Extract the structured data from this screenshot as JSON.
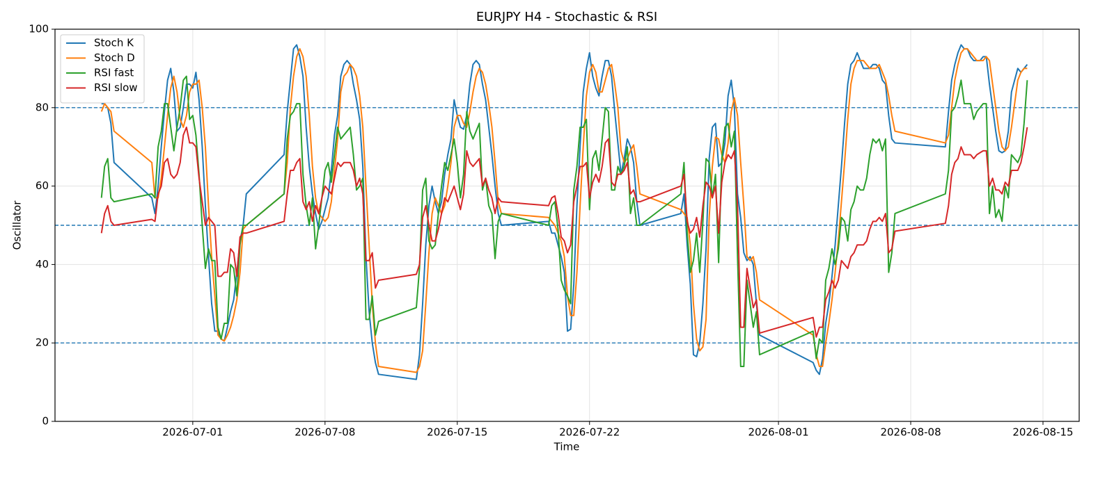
{
  "chart_data": {
    "type": "line",
    "title": "EURJPY H4 - Stochastic & RSI",
    "x_label": "Time",
    "y_label": "Oscillator",
    "xlim": [
      "2026-06-23T17:00",
      "2026-08-16T22:00"
    ],
    "xticks": [
      "2026-07-01",
      "2026-07-08",
      "2026-07-15",
      "2026-07-22",
      "2026-08-01",
      "2026-08-08",
      "2026-08-15"
    ],
    "ylim": [
      0,
      100
    ],
    "yticks": [
      0,
      20,
      40,
      60,
      80,
      100
    ],
    "grid": true,
    "legend": "upper left",
    "reference_lines": [
      80,
      50,
      20
    ],
    "reference_color": "#1f77b4",
    "x": [
      "2026-06-26T04:00",
      "2026-06-26T08:00",
      "2026-06-26T12:00",
      "2026-06-26T16:00",
      "2026-06-26T20:00",
      "2026-06-28T20:00",
      "2026-06-29T00:00",
      "2026-06-29T04:00",
      "2026-06-29T08:00",
      "2026-06-29T12:00",
      "2026-06-29T16:00",
      "2026-06-29T20:00",
      "2026-06-30T00:00",
      "2026-06-30T04:00",
      "2026-06-30T08:00",
      "2026-06-30T12:00",
      "2026-06-30T16:00",
      "2026-06-30T20:00",
      "2026-07-01T00:00",
      "2026-07-01T04:00",
      "2026-07-01T08:00",
      "2026-07-01T12:00",
      "2026-07-01T16:00",
      "2026-07-01T20:00",
      "2026-07-02T00:00",
      "2026-07-02T04:00",
      "2026-07-02T08:00",
      "2026-07-02T12:00",
      "2026-07-02T16:00",
      "2026-07-02T20:00",
      "2026-07-03T00:00",
      "2026-07-03T04:00",
      "2026-07-03T08:00",
      "2026-07-03T12:00",
      "2026-07-03T16:00",
      "2026-07-03T20:00",
      "2026-07-05T20:00",
      "2026-07-06T00:00",
      "2026-07-06T04:00",
      "2026-07-06T08:00",
      "2026-07-06T12:00",
      "2026-07-06T16:00",
      "2026-07-06T20:00",
      "2026-07-07T00:00",
      "2026-07-07T04:00",
      "2026-07-07T08:00",
      "2026-07-07T12:00",
      "2026-07-07T16:00",
      "2026-07-07T20:00",
      "2026-07-08T00:00",
      "2026-07-08T04:00",
      "2026-07-08T08:00",
      "2026-07-08T12:00",
      "2026-07-08T16:00",
      "2026-07-08T20:00",
      "2026-07-09T00:00",
      "2026-07-09T04:00",
      "2026-07-09T08:00",
      "2026-07-09T12:00",
      "2026-07-09T16:00",
      "2026-07-09T20:00",
      "2026-07-10T00:00",
      "2026-07-10T04:00",
      "2026-07-10T08:00",
      "2026-07-10T12:00",
      "2026-07-10T16:00",
      "2026-07-10T20:00",
      "2026-07-12T20:00",
      "2026-07-13T00:00",
      "2026-07-13T04:00",
      "2026-07-13T08:00",
      "2026-07-13T12:00",
      "2026-07-13T16:00",
      "2026-07-13T20:00",
      "2026-07-14T00:00",
      "2026-07-14T04:00",
      "2026-07-14T08:00",
      "2026-07-14T12:00",
      "2026-07-14T16:00",
      "2026-07-14T20:00",
      "2026-07-15T00:00",
      "2026-07-15T04:00",
      "2026-07-15T08:00",
      "2026-07-15T12:00",
      "2026-07-15T16:00",
      "2026-07-15T20:00",
      "2026-07-16T00:00",
      "2026-07-16T04:00",
      "2026-07-16T08:00",
      "2026-07-16T12:00",
      "2026-07-16T16:00",
      "2026-07-16T20:00",
      "2026-07-17T00:00",
      "2026-07-17T04:00",
      "2026-07-17T08:00",
      "2026-07-19T20:00",
      "2026-07-20T00:00",
      "2026-07-20T04:00",
      "2026-07-20T08:00",
      "2026-07-20T12:00",
      "2026-07-20T16:00",
      "2026-07-20T20:00",
      "2026-07-21T00:00",
      "2026-07-21T04:00",
      "2026-07-21T08:00",
      "2026-07-21T12:00",
      "2026-07-21T16:00",
      "2026-07-21T20:00",
      "2026-07-22T00:00",
      "2026-07-22T04:00",
      "2026-07-22T08:00",
      "2026-07-22T12:00",
      "2026-07-22T16:00",
      "2026-07-22T20:00",
      "2026-07-23T00:00",
      "2026-07-23T04:00",
      "2026-07-23T08:00",
      "2026-07-23T12:00",
      "2026-07-23T16:00",
      "2026-07-23T20:00",
      "2026-07-24T00:00",
      "2026-07-24T04:00",
      "2026-07-24T08:00",
      "2026-07-24T12:00",
      "2026-07-24T16:00",
      "2026-07-26T20:00",
      "2026-07-27T00:00",
      "2026-07-27T04:00",
      "2026-07-27T08:00",
      "2026-07-27T12:00",
      "2026-07-27T16:00",
      "2026-07-27T20:00",
      "2026-07-28T00:00",
      "2026-07-28T04:00",
      "2026-07-28T08:00",
      "2026-07-28T12:00",
      "2026-07-28T16:00",
      "2026-07-28T20:00",
      "2026-07-29T00:00",
      "2026-07-29T04:00",
      "2026-07-29T08:00",
      "2026-07-29T12:00",
      "2026-07-29T16:00",
      "2026-07-29T20:00",
      "2026-07-30T00:00",
      "2026-07-30T04:00",
      "2026-07-30T08:00",
      "2026-07-30T12:00",
      "2026-07-30T16:00",
      "2026-07-30T20:00",
      "2026-07-31T00:00",
      "2026-08-02T20:00",
      "2026-08-03T00:00",
      "2026-08-03T04:00",
      "2026-08-03T08:00",
      "2026-08-03T12:00",
      "2026-08-03T16:00",
      "2026-08-03T20:00",
      "2026-08-04T00:00",
      "2026-08-04T04:00",
      "2026-08-04T08:00",
      "2026-08-04T12:00",
      "2026-08-04T16:00",
      "2026-08-04T20:00",
      "2026-08-05T00:00",
      "2026-08-05T04:00",
      "2026-08-05T08:00",
      "2026-08-05T12:00",
      "2026-08-05T16:00",
      "2026-08-05T20:00",
      "2026-08-06T00:00",
      "2026-08-06T04:00",
      "2026-08-06T08:00",
      "2026-08-06T12:00",
      "2026-08-06T16:00",
      "2026-08-06T20:00",
      "2026-08-07T00:00",
      "2026-08-07T04:00",
      "2026-08-09T20:00",
      "2026-08-10T00:00",
      "2026-08-10T04:00",
      "2026-08-10T08:00",
      "2026-08-10T12:00",
      "2026-08-10T16:00",
      "2026-08-10T20:00",
      "2026-08-11T00:00",
      "2026-08-11T04:00",
      "2026-08-11T08:00",
      "2026-08-11T12:00",
      "2026-08-11T16:00",
      "2026-08-11T20:00",
      "2026-08-12T00:00",
      "2026-08-12T04:00",
      "2026-08-12T08:00",
      "2026-08-12T12:00",
      "2026-08-12T16:00",
      "2026-08-12T20:00",
      "2026-08-13T00:00",
      "2026-08-13T04:00",
      "2026-08-13T08:00",
      "2026-08-13T12:00",
      "2026-08-13T16:00",
      "2026-08-13T20:00",
      "2026-08-14T00:00",
      "2026-08-14T04:00"
    ],
    "series": [
      {
        "name": "Stoch K",
        "color": "#1f77b4",
        "values": [
          81,
          81,
          80,
          76,
          66,
          57,
          53,
          60,
          70,
          79,
          87,
          90,
          84,
          74,
          75,
          80,
          86,
          86,
          85,
          89,
          82,
          70,
          55,
          42,
          30,
          23,
          23,
          21,
          20.5,
          24,
          28,
          31,
          38,
          46,
          50,
          58,
          68,
          79,
          87,
          95,
          96,
          93,
          88,
          75,
          65,
          58,
          53,
          49,
          51,
          54,
          57,
          64,
          73,
          78,
          88,
          91,
          92,
          91,
          86,
          82,
          77,
          65,
          42,
          28,
          20,
          15,
          12,
          10.7,
          17,
          30,
          45,
          55,
          60,
          56,
          53,
          56,
          63,
          68,
          72,
          82,
          78,
          75,
          74.5,
          78,
          86,
          91,
          92,
          91,
          86,
          82,
          75,
          68,
          60,
          53,
          50,
          51,
          48,
          48,
          45,
          42,
          38,
          23,
          23.5,
          35,
          55,
          70,
          84,
          90,
          94,
          88,
          85,
          83,
          88,
          92,
          92,
          88,
          79,
          71,
          63,
          67,
          72,
          70,
          66,
          56,
          50,
          53,
          58,
          45,
          35,
          17,
          16.5,
          20,
          30,
          44,
          67,
          75,
          76,
          65,
          66,
          71,
          83,
          87,
          80,
          58,
          52,
          43,
          41,
          42,
          40,
          30,
          22,
          15,
          13,
          12,
          16,
          25,
          30,
          37,
          45,
          55,
          65,
          76,
          86,
          91,
          92,
          94,
          92,
          90,
          90,
          90,
          91,
          91,
          90,
          87,
          86,
          78,
          72,
          71,
          70,
          79,
          87,
          91,
          94,
          96,
          95,
          95,
          93,
          92,
          92,
          92,
          93,
          93,
          86,
          80,
          74,
          69,
          68.5,
          69,
          74,
          84,
          87,
          90,
          89,
          90,
          91
        ]
      },
      {
        "name": "Stoch D",
        "color": "#ff7f0e",
        "values": [
          79,
          81,
          80,
          79,
          74,
          66,
          57,
          57,
          62,
          70,
          78,
          85,
          88,
          84,
          77,
          75,
          78,
          84,
          86,
          86,
          87,
          80,
          70,
          55,
          42,
          32,
          22,
          21,
          20.5,
          22,
          24,
          27,
          31,
          38,
          49,
          50,
          58,
          66,
          80,
          88,
          93,
          95,
          93,
          88,
          78,
          65,
          57,
          53,
          52,
          51,
          52,
          56,
          64,
          72,
          84,
          88,
          89,
          91,
          90,
          88,
          83,
          75,
          60,
          45,
          30,
          20,
          14,
          12.5,
          14,
          18,
          30,
          43,
          53,
          57,
          55,
          53,
          55,
          60,
          66,
          75,
          78,
          78,
          76,
          75,
          79,
          84,
          88,
          90,
          89,
          86,
          81,
          75,
          66,
          56,
          53,
          52,
          51,
          50,
          48,
          46,
          42,
          32,
          27,
          27,
          38,
          55,
          70,
          83,
          89,
          91,
          89,
          84,
          84,
          87,
          90,
          91,
          86,
          80,
          69,
          66,
          67,
          69,
          70.5,
          65,
          58,
          54,
          53,
          52,
          45,
          30,
          21,
          18,
          19,
          26,
          52,
          65,
          72.5,
          72,
          68,
          66,
          71,
          79,
          82.5,
          78,
          66,
          55,
          42,
          41,
          42,
          38,
          31,
          22,
          17,
          14,
          14,
          20,
          25,
          31,
          38,
          46,
          56,
          66,
          77,
          86,
          90,
          92,
          92,
          92,
          91,
          90,
          90,
          90,
          91,
          89,
          87,
          83,
          78,
          74,
          71,
          73,
          80,
          87,
          91,
          94,
          95,
          95,
          94,
          93,
          92,
          92,
          92,
          93,
          92,
          86,
          80,
          74,
          70,
          69,
          70,
          75,
          81,
          87,
          89,
          90,
          90
        ]
      },
      {
        "name": "RSI fast",
        "color": "#2ca02c",
        "values": [
          57,
          65,
          67,
          57,
          56,
          58,
          57,
          70,
          74,
          81,
          81,
          75,
          69,
          75,
          80,
          87,
          88,
          77,
          78,
          73,
          63,
          50,
          39,
          44,
          41,
          41,
          24,
          21,
          25,
          25,
          40,
          39,
          32,
          45,
          50,
          50,
          58,
          72,
          78,
          79,
          81,
          81,
          63,
          55,
          50,
          57,
          44,
          50,
          57,
          64,
          66,
          61,
          68,
          75,
          72,
          73,
          74,
          75,
          68,
          59,
          60,
          62,
          26,
          26,
          32,
          22,
          25.5,
          29,
          39,
          59,
          62,
          46,
          44,
          45,
          53,
          60,
          66,
          64,
          68,
          72,
          66,
          57,
          63,
          79,
          74,
          72,
          74,
          76,
          59,
          62,
          55,
          53,
          41.5,
          51,
          53,
          50,
          55,
          56,
          49,
          36,
          33.5,
          32,
          30,
          59,
          65,
          75,
          75,
          77,
          54,
          67,
          69,
          64,
          72,
          80,
          79,
          59,
          59,
          65,
          63,
          65,
          70,
          53,
          57,
          50,
          50,
          58,
          66,
          48,
          38,
          41,
          48,
          38,
          51,
          67,
          66,
          57,
          63,
          40.5,
          67,
          75,
          76,
          70,
          74,
          42,
          14,
          14,
          36,
          30,
          24,
          28,
          17,
          23,
          16,
          21,
          20,
          36,
          39,
          44,
          40,
          44,
          52,
          51,
          46,
          54,
          56,
          60,
          59,
          59,
          62,
          68,
          72,
          71,
          72,
          69,
          72,
          38,
          43,
          53,
          58,
          64,
          79,
          80,
          83,
          87,
          81,
          81,
          81,
          77,
          79,
          80,
          81,
          81,
          53,
          60,
          52,
          54,
          51,
          60,
          57,
          68,
          67,
          66,
          68,
          76,
          87
        ]
      },
      {
        "name": "RSI slow",
        "color": "#d62728",
        "values": [
          48,
          53,
          55,
          51,
          50,
          51.5,
          51,
          58,
          60,
          66,
          67,
          63,
          62,
          63,
          66,
          73,
          75,
          71,
          71,
          70,
          62,
          56,
          50,
          52,
          51,
          50,
          37,
          37,
          38,
          38,
          44,
          43,
          37,
          47,
          48,
          48,
          51,
          58,
          64,
          64,
          66,
          67,
          56,
          54,
          56,
          51,
          55,
          53,
          57,
          60,
          59,
          58,
          62,
          66,
          65,
          66,
          66,
          66,
          64,
          60,
          62,
          58,
          41,
          41,
          43,
          34,
          36,
          37.5,
          40,
          52,
          55,
          50,
          46,
          46,
          49,
          53,
          57,
          56,
          58,
          60,
          57,
          54,
          58,
          69,
          66,
          65,
          66,
          67,
          60,
          62,
          59,
          57,
          53,
          57,
          56,
          55,
          57,
          57.5,
          53,
          47,
          46,
          43,
          45,
          56,
          60,
          65,
          65,
          66,
          57,
          61,
          63,
          61,
          65,
          71,
          72,
          61,
          60,
          63,
          63,
          64,
          66,
          58,
          59,
          56,
          56,
          60,
          63,
          51,
          48,
          49,
          52,
          47,
          55,
          61,
          60,
          57,
          60,
          48,
          61,
          66,
          68,
          67,
          69,
          55,
          24,
          24,
          39,
          34,
          29,
          31,
          22.5,
          26.5,
          21.5,
          24,
          24,
          31,
          33,
          36,
          34,
          36,
          41,
          40,
          39,
          42,
          43,
          45,
          45,
          45,
          46,
          49,
          51,
          51,
          52,
          51,
          53,
          43,
          44,
          48.5,
          50.5,
          55,
          63,
          66,
          67,
          70,
          68,
          68,
          68,
          67,
          68,
          68.5,
          69,
          69,
          60,
          62,
          59,
          59,
          58,
          61,
          60,
          64,
          64,
          64,
          66,
          70,
          75
        ]
      }
    ]
  }
}
